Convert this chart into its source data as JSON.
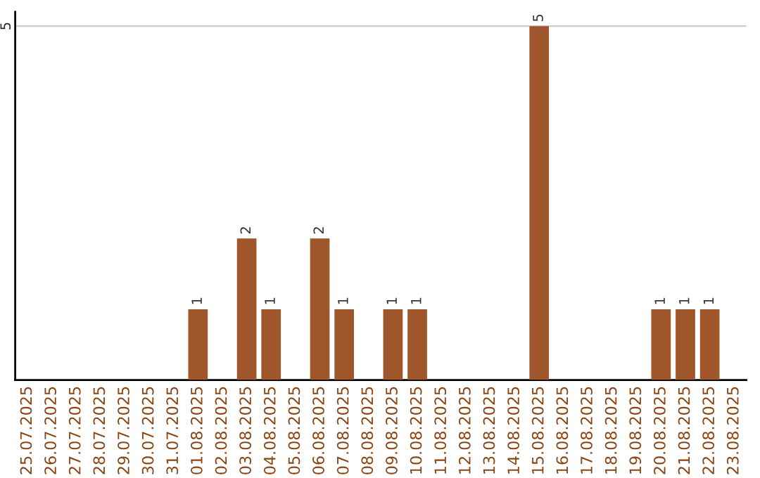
{
  "chart_data": {
    "type": "bar",
    "categories": [
      "25.07.2025",
      "26.07.2025",
      "27.07.2025",
      "28.07.2025",
      "29.07.2025",
      "30.07.2025",
      "31.07.2025",
      "01.08.2025",
      "02.08.2025",
      "03.08.2025",
      "04.08.2025",
      "05.08.2025",
      "06.08.2025",
      "07.08.2025",
      "08.08.2025",
      "09.08.2025",
      "10.08.2025",
      "11.08.2025",
      "12.08.2025",
      "13.08.2025",
      "14.08.2025",
      "15.08.2025",
      "16.08.2025",
      "17.08.2025",
      "18.08.2025",
      "19.08.2025",
      "20.08.2025",
      "21.08.2025",
      "22.08.2025",
      "23.08.2025"
    ],
    "values": [
      0,
      0,
      0,
      0,
      0,
      0,
      0,
      1,
      0,
      2,
      1,
      0,
      2,
      1,
      0,
      1,
      1,
      0,
      0,
      0,
      0,
      5,
      0,
      0,
      0,
      0,
      1,
      1,
      1,
      0
    ],
    "value_labels": [
      null,
      null,
      null,
      null,
      null,
      null,
      null,
      "1",
      null,
      "2",
      "1",
      null,
      "2",
      "1",
      null,
      "1",
      "1",
      null,
      null,
      null,
      null,
      "5",
      null,
      null,
      null,
      null,
      "1",
      "1",
      "1",
      null
    ],
    "color": "#a0562b",
    "ylim": [
      0,
      5.2
    ],
    "yticks": [
      5
    ],
    "grid": "y"
  }
}
